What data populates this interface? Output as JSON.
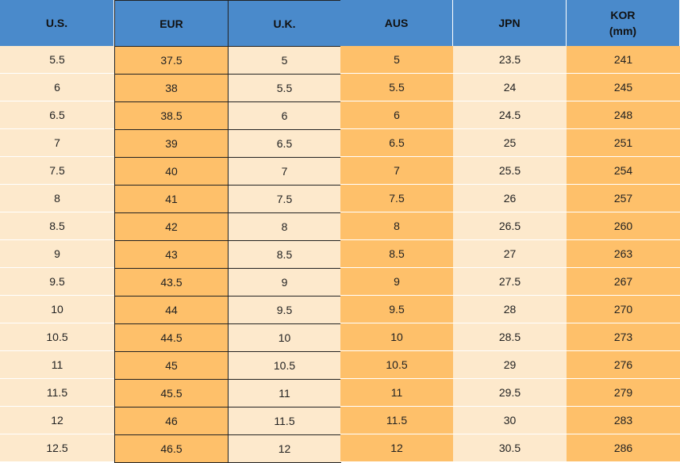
{
  "table": {
    "header": [
      "U.S.",
      "EUR",
      "U.K.",
      "AUS",
      "JPN",
      "KOR\n(mm)"
    ],
    "rows": [
      [
        5.5,
        37.5,
        5,
        5,
        23.5,
        241
      ],
      [
        6,
        38,
        5.5,
        5.5,
        24,
        245
      ],
      [
        6.5,
        38.5,
        6,
        6,
        24.5,
        248
      ],
      [
        7,
        39,
        6.5,
        6.5,
        25,
        251
      ],
      [
        7.5,
        40,
        7,
        7,
        25.5,
        254
      ],
      [
        8,
        41,
        7.5,
        7.5,
        26,
        257
      ],
      [
        8.5,
        42,
        8,
        8,
        26.5,
        260
      ],
      [
        9,
        43,
        8.5,
        8.5,
        27,
        263
      ],
      [
        9.5,
        43.5,
        9,
        9,
        27.5,
        267
      ],
      [
        10,
        44,
        9.5,
        9.5,
        28,
        270
      ],
      [
        10.5,
        44.5,
        10,
        10,
        28.5,
        273
      ],
      [
        11,
        45,
        10.5,
        10.5,
        29,
        276
      ],
      [
        11.5,
        45.5,
        11,
        11,
        29.5,
        279
      ],
      [
        12,
        46,
        11.5,
        11.5,
        30,
        283
      ],
      [
        12.5,
        46.5,
        12,
        12,
        30.5,
        286
      ]
    ]
  }
}
